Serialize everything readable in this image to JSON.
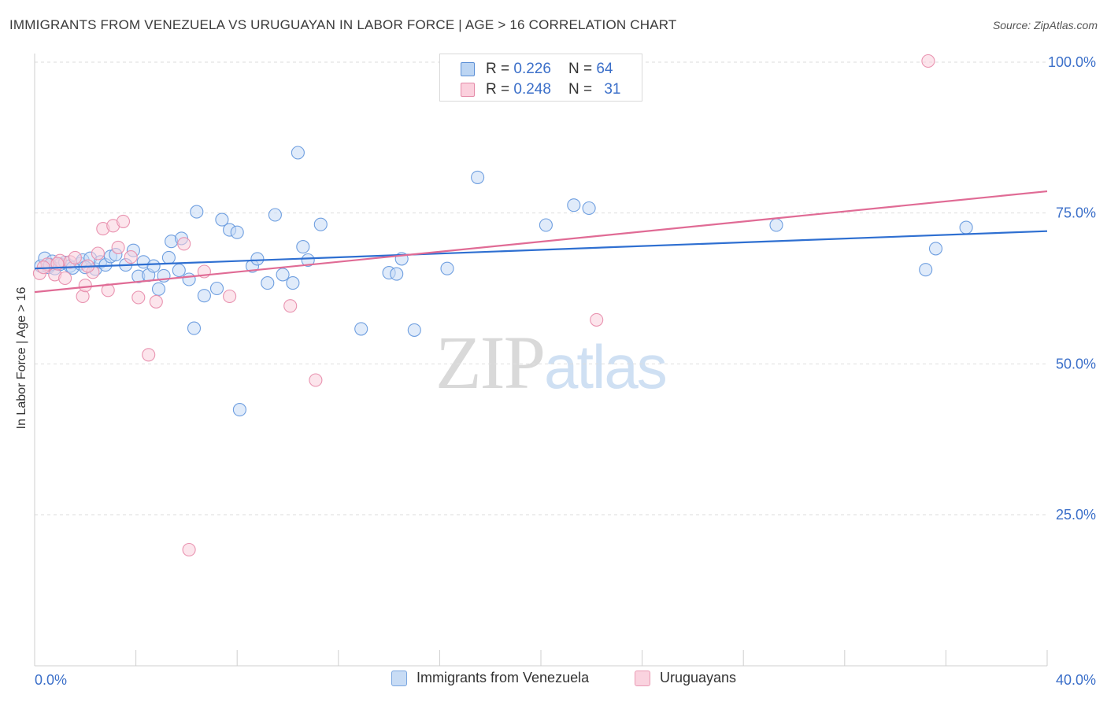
{
  "header": {
    "title": "IMMIGRANTS FROM VENEZUELA VS URUGUAYAN IN LABOR FORCE | AGE > 16 CORRELATION CHART",
    "source": "Source: ZipAtlas.com"
  },
  "watermark": {
    "zip": "ZIP",
    "atlas": "atlas"
  },
  "stats": [
    {
      "r_label": "R =",
      "r_value": "0.226",
      "n_label": "N =",
      "n_value": "64",
      "color": "#9fc3ef",
      "border": "#5b8fd6"
    },
    {
      "r_label": "R =",
      "r_value": "0.248",
      "n_label": "N =",
      "n_value": "31",
      "color": "#f6bfd0",
      "border": "#e48aa8"
    }
  ],
  "legend": [
    {
      "label": "Immigrants from Venezuela",
      "color": "#c8dcf5",
      "border": "#7aa6e0"
    },
    {
      "label": "Uruguayans",
      "color": "#fad3df",
      "border": "#e99ab4"
    }
  ],
  "chart_data": {
    "type": "scatter",
    "title": "IMMIGRANTS FROM VENEZUELA VS URUGUAYAN IN LABOR FORCE | AGE > 16 CORRELATION CHART",
    "xlabel": "",
    "ylabel": "In Labor Force | Age > 16",
    "xlim": [
      0,
      40
    ],
    "ylim": [
      0,
      105
    ],
    "x_tick_labels": [
      {
        "value": 0,
        "label": "0.0%"
      },
      {
        "value": 40,
        "label": "40.0%"
      }
    ],
    "x_minor_ticks": [
      4,
      8,
      12,
      16,
      20,
      24,
      28,
      32,
      36
    ],
    "y_ticks": [
      {
        "value": 25,
        "label": "25.0%"
      },
      {
        "value": 50,
        "label": "50.0%"
      },
      {
        "value": 75,
        "label": "75.0%"
      },
      {
        "value": 100,
        "label": "100.0%"
      }
    ],
    "grid": true,
    "series": [
      {
        "name": "Immigrants from Venezuela",
        "color": "#6f9fe0",
        "fill": "#c6daf5",
        "trend": {
          "x": [
            0,
            40
          ],
          "y": [
            65.8,
            72.0
          ],
          "color": "#2e6fd1"
        },
        "points": [
          [
            0.25,
            66.2
          ],
          [
            0.4,
            67.5
          ],
          [
            0.55,
            66.0
          ],
          [
            0.7,
            67.0
          ],
          [
            0.8,
            65.8
          ],
          [
            1.0,
            66.5
          ],
          [
            1.2,
            66.8
          ],
          [
            1.4,
            66.2
          ],
          [
            1.5,
            65.9
          ],
          [
            1.8,
            66.6
          ],
          [
            1.9,
            67.2
          ],
          [
            2.2,
            67.5
          ],
          [
            2.4,
            65.7
          ],
          [
            2.6,
            66.9
          ],
          [
            2.8,
            66.4
          ],
          [
            3.0,
            67.8
          ],
          [
            3.2,
            68.1
          ],
          [
            3.6,
            66.4
          ],
          [
            3.9,
            68.8
          ],
          [
            4.1,
            64.5
          ],
          [
            4.3,
            66.9
          ],
          [
            4.5,
            64.7
          ],
          [
            4.7,
            66.2
          ],
          [
            4.9,
            62.4
          ],
          [
            5.1,
            64.6
          ],
          [
            5.3,
            67.6
          ],
          [
            5.4,
            70.3
          ],
          [
            5.7,
            65.5
          ],
          [
            5.8,
            70.8
          ],
          [
            6.1,
            64.0
          ],
          [
            6.3,
            55.9
          ],
          [
            6.4,
            75.2
          ],
          [
            6.7,
            61.3
          ],
          [
            7.2,
            62.5
          ],
          [
            7.4,
            73.9
          ],
          [
            7.7,
            72.2
          ],
          [
            8.0,
            71.8
          ],
          [
            8.1,
            42.4
          ],
          [
            8.6,
            66.2
          ],
          [
            8.8,
            67.4
          ],
          [
            9.2,
            63.4
          ],
          [
            9.5,
            74.7
          ],
          [
            9.8,
            64.8
          ],
          [
            10.2,
            63.4
          ],
          [
            10.4,
            85.0
          ],
          [
            10.6,
            69.4
          ],
          [
            10.8,
            67.2
          ],
          [
            11.3,
            73.1
          ],
          [
            12.9,
            55.8
          ],
          [
            14.0,
            65.1
          ],
          [
            14.3,
            64.9
          ],
          [
            14.5,
            67.4
          ],
          [
            15.0,
            55.6
          ],
          [
            16.3,
            65.8
          ],
          [
            17.5,
            80.9
          ],
          [
            20.2,
            73.0
          ],
          [
            21.3,
            76.3
          ],
          [
            21.9,
            75.8
          ],
          [
            29.3,
            73.0
          ],
          [
            35.2,
            65.6
          ],
          [
            35.6,
            69.1
          ],
          [
            36.8,
            72.6
          ],
          [
            0.6,
            66.4
          ],
          [
            2.0,
            66.0
          ]
        ]
      },
      {
        "name": "Uruguayans",
        "color": "#e993b0",
        "fill": "#f9cfdc",
        "trend": {
          "x": [
            0,
            40
          ],
          "y": [
            61.9,
            78.6
          ],
          "color": "#e06b95"
        },
        "points": [
          [
            0.2,
            65.0
          ],
          [
            0.5,
            66.5
          ],
          [
            0.8,
            64.8
          ],
          [
            1.0,
            67.1
          ],
          [
            1.2,
            64.2
          ],
          [
            1.4,
            66.9
          ],
          [
            1.6,
            67.6
          ],
          [
            1.9,
            61.2
          ],
          [
            2.0,
            63.0
          ],
          [
            2.3,
            65.2
          ],
          [
            2.5,
            68.3
          ],
          [
            2.7,
            72.4
          ],
          [
            2.9,
            62.2
          ],
          [
            3.1,
            72.9
          ],
          [
            3.3,
            69.3
          ],
          [
            3.5,
            73.6
          ],
          [
            4.1,
            61.0
          ],
          [
            4.5,
            51.5
          ],
          [
            4.8,
            60.3
          ],
          [
            5.9,
            69.9
          ],
          [
            6.1,
            19.2
          ],
          [
            6.7,
            65.3
          ],
          [
            7.7,
            61.2
          ],
          [
            10.1,
            59.6
          ],
          [
            11.1,
            47.3
          ],
          [
            22.2,
            57.3
          ],
          [
            35.3,
            100.2
          ],
          [
            0.35,
            66.0
          ],
          [
            0.9,
            66.6
          ],
          [
            2.1,
            66.2
          ],
          [
            3.8,
            67.7
          ]
        ]
      }
    ]
  }
}
